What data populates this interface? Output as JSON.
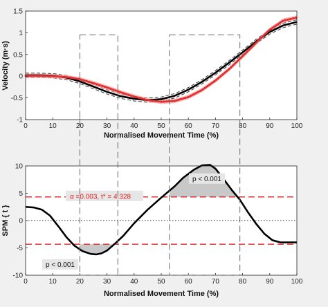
{
  "chart_data": [
    {
      "type": "line",
      "xlabel": "Normalised Movement Time (%)",
      "ylabel": "Velocity (m·s)",
      "xlim": [
        0,
        100
      ],
      "ylim": [
        -1,
        1.5
      ],
      "xticks": [
        "0",
        "10",
        "20",
        "30",
        "40",
        "50",
        "60",
        "70",
        "80",
        "90",
        "100"
      ],
      "yticks": [
        "-1",
        "-0.5",
        "0",
        "0.5",
        "1",
        "1.5"
      ],
      "grid": false,
      "series": [
        {
          "color": "#000000",
          "style": "solid thick with dashed SD band",
          "x": [
            0,
            5,
            10,
            15,
            20,
            25,
            30,
            35,
            40,
            45,
            50,
            55,
            60,
            65,
            70,
            75,
            80,
            85,
            90,
            95,
            100
          ],
          "y": [
            0.02,
            0.02,
            0.01,
            -0.03,
            -0.12,
            -0.24,
            -0.36,
            -0.46,
            -0.52,
            -0.55,
            -0.53,
            -0.45,
            -0.31,
            -0.13,
            0.08,
            0.31,
            0.55,
            0.8,
            1.02,
            1.17,
            1.25
          ],
          "sd": 0.05
        },
        {
          "color": "#e03030",
          "style": "dotted thick with shaded SD band",
          "x": [
            0,
            5,
            10,
            15,
            20,
            25,
            30,
            35,
            40,
            45,
            50,
            55,
            60,
            65,
            70,
            75,
            80,
            85,
            90,
            95,
            100
          ],
          "y": [
            0.01,
            0.01,
            0.0,
            -0.02,
            -0.07,
            -0.16,
            -0.26,
            -0.37,
            -0.47,
            -0.55,
            -0.59,
            -0.57,
            -0.48,
            -0.32,
            -0.1,
            0.16,
            0.46,
            0.77,
            1.07,
            1.28,
            1.35
          ],
          "sd": 0.05
        }
      ],
      "shaded_regions": [
        [
          20,
          34
        ],
        [
          53,
          79
        ]
      ]
    },
    {
      "type": "line",
      "xlabel": "Normalised Movement Time (%)",
      "ylabel": "SPM { t }",
      "xlim": [
        0,
        100
      ],
      "ylim": [
        -10,
        10
      ],
      "xticks": [
        "0",
        "10",
        "20",
        "30",
        "40",
        "50",
        "60",
        "70",
        "80",
        "90",
        "100"
      ],
      "yticks": [
        "-10",
        "-5",
        "0",
        "5",
        "10"
      ],
      "grid": false,
      "series": [
        {
          "color": "#000000",
          "x": [
            0,
            3,
            6,
            9,
            12,
            15,
            18,
            21,
            24,
            26,
            28,
            30,
            33,
            36,
            40,
            45,
            50,
            55,
            58,
            62,
            65,
            68,
            70,
            73,
            76,
            79,
            82,
            85,
            88,
            91,
            94,
            97,
            100
          ],
          "y": [
            2.5,
            2.4,
            2.0,
            0.9,
            -1.0,
            -3.0,
            -4.6,
            -5.6,
            -6.1,
            -6.2,
            -6.0,
            -5.5,
            -4.2,
            -2.8,
            -0.5,
            2.0,
            4.2,
            6.3,
            7.8,
            9.3,
            10.1,
            10.2,
            9.5,
            7.6,
            5.6,
            3.8,
            1.5,
            -0.6,
            -2.4,
            -3.6,
            -4.0,
            -4.0,
            -4.0
          ]
        }
      ],
      "threshold": {
        "value": 4.328,
        "color": "#e02020",
        "label": "α =0.003,     t* = 4.328"
      },
      "zero_line": true,
      "clusters": [
        {
          "x": [
            20,
            34
          ],
          "label": "p < 0.001"
        },
        {
          "x": [
            53,
            79
          ],
          "label": "p < 0.001"
        }
      ]
    }
  ]
}
